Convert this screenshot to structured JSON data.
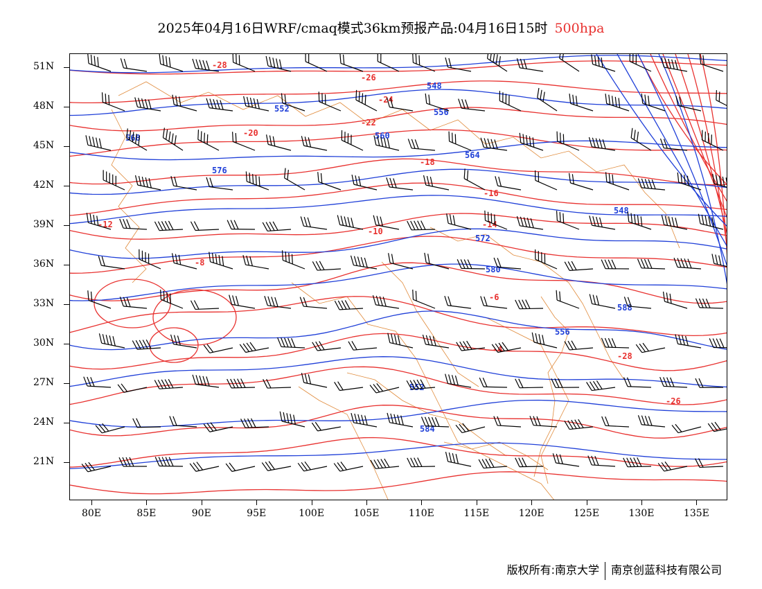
{
  "title": {
    "main": "2025年04月16日WRF/cmaq模式36km预报产品:04月16日15时",
    "level": "500hpa"
  },
  "map": {
    "lat_axis": [
      "51N",
      "48N",
      "45N",
      "42N",
      "39N",
      "36N",
      "33N",
      "30N",
      "27N",
      "24N",
      "21N"
    ],
    "lon_axis": [
      "80E",
      "85E",
      "90E",
      "95E",
      "100E",
      "105E",
      "110E",
      "115E",
      "120E",
      "125E",
      "130E",
      "135E"
    ],
    "colors": {
      "height_contour": "#1f3fd8",
      "temperature_contour": "#e8312f",
      "boundary": "#e08a3a",
      "wind_barb": "#000000"
    },
    "height_labels": [
      "548",
      "552",
      "556",
      "560",
      "564",
      "568",
      "572",
      "576",
      "580",
      "584",
      "588"
    ],
    "temperature_labels": [
      "-28",
      "-26",
      "-24",
      "-22",
      "-20",
      "-18",
      "-16",
      "-14",
      "-12",
      "-10",
      "-8",
      "-6",
      "-4"
    ]
  },
  "footer": {
    "copyright": "版权所有:南京大学",
    "company": "南京创蓝科技有限公司"
  }
}
